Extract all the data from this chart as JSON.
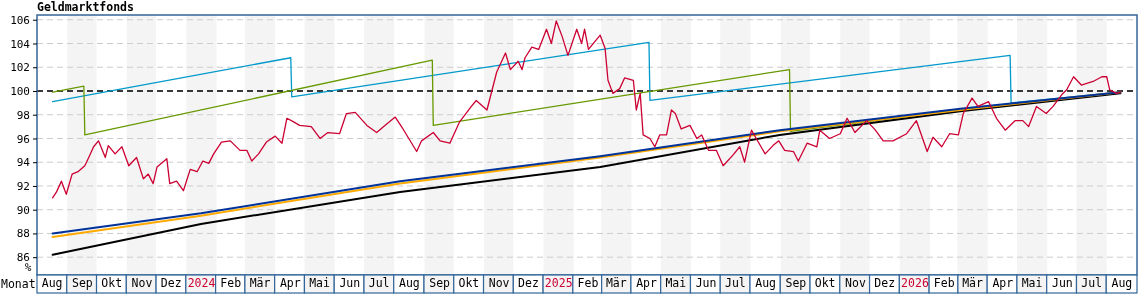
{
  "chart_data": {
    "type": "line",
    "title": "Geldmarktfonds",
    "xlabel": "Monat",
    "ylabel": "%",
    "xlim": [
      "2023-08-01",
      "2026-09-01"
    ],
    "ylim": [
      84.5,
      106.4
    ],
    "yticks": [
      86,
      88,
      90,
      92,
      94,
      96,
      98,
      100,
      102,
      104,
      106
    ],
    "xticks": [
      {
        "value": "2023-08-16",
        "label": "Aug"
      },
      {
        "value": "2023-09-16",
        "label": "Sep"
      },
      {
        "value": "2023-10-16",
        "label": "Okt"
      },
      {
        "value": "2023-11-16",
        "label": "Nov"
      },
      {
        "value": "2023-12-16",
        "label": "Dez"
      },
      {
        "value": "2024-01-16",
        "label": "2024"
      },
      {
        "value": "2024-02-15",
        "label": "Feb"
      },
      {
        "value": "2024-03-16",
        "label": "Mär"
      },
      {
        "value": "2024-04-16",
        "label": "Apr"
      },
      {
        "value": "2024-05-16",
        "label": "Mai"
      },
      {
        "value": "2024-06-16",
        "label": "Jun"
      },
      {
        "value": "2024-07-16",
        "label": "Jul"
      },
      {
        "value": "2024-08-16",
        "label": "Aug"
      },
      {
        "value": "2024-09-16",
        "label": "Sep"
      },
      {
        "value": "2024-10-16",
        "label": "Okt"
      },
      {
        "value": "2024-11-16",
        "label": "Nov"
      },
      {
        "value": "2024-12-16",
        "label": "Dez"
      },
      {
        "value": "2025-01-16",
        "label": "2025"
      },
      {
        "value": "2025-02-15",
        "label": "Feb"
      },
      {
        "value": "2025-03-16",
        "label": "Mär"
      },
      {
        "value": "2025-04-16",
        "label": "Apr"
      },
      {
        "value": "2025-05-16",
        "label": "Mai"
      },
      {
        "value": "2025-06-16",
        "label": "Jun"
      },
      {
        "value": "2025-07-16",
        "label": "Jul"
      },
      {
        "value": "2025-08-16",
        "label": "Aug"
      },
      {
        "value": "2025-09-16",
        "label": "Sep"
      },
      {
        "value": "2025-10-16",
        "label": "Okt"
      },
      {
        "value": "2025-11-16",
        "label": "Nov"
      },
      {
        "value": "2025-12-16",
        "label": "Dez"
      },
      {
        "value": "2026-01-16",
        "label": "2026"
      },
      {
        "value": "2026-02-15",
        "label": "Feb"
      },
      {
        "value": "2026-03-16",
        "label": "Mär"
      },
      {
        "value": "2026-04-16",
        "label": "Apr"
      },
      {
        "value": "2026-05-16",
        "label": "Mai"
      },
      {
        "value": "2026-06-16",
        "label": "Jun"
      },
      {
        "value": "2026-07-16",
        "label": "Jul"
      },
      {
        "value": "2026-08-16",
        "label": "Aug"
      }
    ],
    "grid": "y",
    "ref_lines": [
      {
        "axis": "y",
        "value": 100,
        "label": null,
        "color": "#000000",
        "line_style": "dashed"
      }
    ],
    "bands": [
      {
        "axis": "x",
        "from": "2023-09-01",
        "to": "2023-10-01",
        "label": null,
        "color": "#f4f4f4"
      },
      {
        "axis": "x",
        "from": "2023-11-01",
        "to": "2023-12-01",
        "label": null,
        "color": "#f4f4f4"
      },
      {
        "axis": "x",
        "from": "2024-01-01",
        "to": "2024-02-01",
        "label": null,
        "color": "#f4f4f4"
      },
      {
        "axis": "x",
        "from": "2024-03-01",
        "to": "2024-04-01",
        "label": null,
        "color": "#f4f4f4"
      },
      {
        "axis": "x",
        "from": "2024-05-01",
        "to": "2024-06-01",
        "label": null,
        "color": "#f4f4f4"
      },
      {
        "axis": "x",
        "from": "2024-07-01",
        "to": "2024-08-01",
        "label": null,
        "color": "#f4f4f4"
      },
      {
        "axis": "x",
        "from": "2024-09-01",
        "to": "2024-10-01",
        "label": null,
        "color": "#f4f4f4"
      },
      {
        "axis": "x",
        "from": "2024-11-01",
        "to": "2024-12-01",
        "label": null,
        "color": "#f4f4f4"
      },
      {
        "axis": "x",
        "from": "2025-01-01",
        "to": "2025-02-01",
        "label": null,
        "color": "#f4f4f4"
      },
      {
        "axis": "x",
        "from": "2025-03-01",
        "to": "2025-04-01",
        "label": null,
        "color": "#f4f4f4"
      },
      {
        "axis": "x",
        "from": "2025-05-01",
        "to": "2025-06-01",
        "label": null,
        "color": "#f4f4f4"
      },
      {
        "axis": "x",
        "from": "2025-07-01",
        "to": "2025-08-01",
        "label": null,
        "color": "#f4f4f4"
      },
      {
        "axis": "x",
        "from": "2025-09-01",
        "to": "2025-10-01",
        "label": null,
        "color": "#f4f4f4"
      },
      {
        "axis": "x",
        "from": "2025-11-01",
        "to": "2025-12-01",
        "label": null,
        "color": "#f4f4f4"
      },
      {
        "axis": "x",
        "from": "2026-01-01",
        "to": "2026-02-01",
        "label": null,
        "color": "#f4f4f4"
      },
      {
        "axis": "x",
        "from": "2026-03-01",
        "to": "2026-04-01",
        "label": null,
        "color": "#f4f4f4"
      },
      {
        "axis": "x",
        "from": "2026-05-01",
        "to": "2026-06-01",
        "label": null,
        "color": "#f4f4f4"
      },
      {
        "axis": "x",
        "from": "2026-07-01",
        "to": "2026-08-01",
        "label": null,
        "color": "#f4f4f4"
      }
    ],
    "series": [
      {
        "color": "#0099cc",
        "x": [
          "2023-08-17",
          "2024-04-17",
          "2024-04-18",
          "2025-04-19",
          "2025-04-20",
          "2026-04-24",
          "2026-04-25",
          "2026-08-15"
        ],
        "values": [
          99.1,
          102.8,
          99.5,
          104.1,
          99.2,
          103.0,
          99.0,
          99.9
        ]
      },
      {
        "color": "#669900",
        "x": [
          "2023-08-17",
          "2023-09-18",
          "2023-09-19",
          "2024-09-09",
          "2024-09-10",
          "2025-09-10",
          "2025-09-11",
          "2026-03-04",
          "2026-08-15"
        ],
        "values": [
          99.9,
          100.4,
          96.3,
          102.6,
          97.1,
          101.8,
          96.6,
          98.4,
          99.9
        ]
      },
      {
        "color": "#000000",
        "x": [
          "2023-08-17",
          "2024-01-16",
          "2024-08-07",
          "2025-02-28",
          "2025-08-31",
          "2026-03-04",
          "2026-08-15"
        ],
        "values": [
          86.2,
          88.8,
          91.5,
          93.6,
          96.3,
          98.3,
          99.8
        ]
      },
      {
        "color": "#ffaa00",
        "x": [
          "2023-08-17",
          "2024-01-16",
          "2024-08-07",
          "2025-02-28",
          "2025-08-31",
          "2026-03-04",
          "2026-08-15"
        ],
        "values": [
          87.7,
          89.5,
          92.2,
          94.4,
          96.6,
          98.4,
          99.9
        ]
      },
      {
        "color": "#003399",
        "x": [
          "2023-08-17",
          "2024-01-16",
          "2024-08-07",
          "2025-02-28",
          "2025-08-31",
          "2026-03-04",
          "2026-08-15"
        ],
        "values": [
          88.0,
          89.7,
          92.4,
          94.5,
          96.7,
          98.5,
          99.9
        ]
      },
      {
        "color": "#cc0033",
        "x": [
          "2023-08-17",
          "2023-08-21",
          "2023-08-26",
          "2023-08-31",
          "2023-09-06",
          "2023-09-12",
          "2023-09-19",
          "2023-09-23",
          "2023-09-28",
          "2023-10-03",
          "2023-10-10",
          "2023-10-13",
          "2023-10-20",
          "2023-10-27",
          "2023-11-03",
          "2023-11-11",
          "2023-11-18",
          "2023-11-23",
          "2023-11-28",
          "2023-12-02",
          "2023-12-12",
          "2023-12-15",
          "2023-12-22",
          "2023-12-29",
          "2024-01-05",
          "2024-01-12",
          "2024-01-18",
          "2024-01-24",
          "2024-01-29",
          "2024-02-06",
          "2024-02-15",
          "2024-02-25",
          "2024-03-03",
          "2024-03-08",
          "2024-03-15",
          "2024-03-23",
          "2024-04-01",
          "2024-04-08",
          "2024-04-13",
          "2024-04-20",
          "2024-04-26",
          "2024-05-08",
          "2024-05-17",
          "2024-05-25",
          "2024-06-06",
          "2024-06-13",
          "2024-06-22",
          "2024-07-04",
          "2024-07-14",
          "2024-07-24",
          "2024-08-02",
          "2024-08-10",
          "2024-08-24",
          "2024-08-29",
          "2024-09-10",
          "2024-09-17",
          "2024-09-27",
          "2024-10-07",
          "2024-10-19",
          "2024-10-24",
          "2024-11-04",
          "2024-11-14",
          "2024-11-23",
          "2024-11-28",
          "2024-12-06",
          "2024-12-10",
          "2024-12-13",
          "2024-12-20",
          "2024-12-27",
          "2025-01-04",
          "2025-01-09",
          "2025-01-14",
          "2025-01-20",
          "2025-01-26",
          "2025-02-04",
          "2025-02-09",
          "2025-02-12",
          "2025-02-16",
          "2025-02-28",
          "2025-03-05",
          "2025-03-08",
          "2025-03-13",
          "2025-03-20",
          "2025-03-25",
          "2025-04-03",
          "2025-04-06",
          "2025-04-10",
          "2025-04-13",
          "2025-04-20",
          "2025-04-25",
          "2025-04-30",
          "2025-05-07",
          "2025-05-12",
          "2025-05-16",
          "2025-05-22",
          "2025-05-31",
          "2025-06-07",
          "2025-06-12",
          "2025-06-19",
          "2025-06-27",
          "2025-07-04",
          "2025-07-14",
          "2025-07-21",
          "2025-07-26",
          "2025-08-02",
          "2025-08-09",
          "2025-08-16",
          "2025-08-24",
          "2025-08-30",
          "2025-09-05",
          "2025-09-14",
          "2025-09-19",
          "2025-09-28",
          "2025-10-08",
          "2025-10-11",
          "2025-10-21",
          "2025-11-01",
          "2025-11-08",
          "2025-11-16",
          "2025-11-28",
          "2025-12-07",
          "2025-12-15",
          "2025-12-25",
          "2026-01-08",
          "2026-01-18",
          "2026-01-29",
          "2026-02-04",
          "2026-02-13",
          "2026-02-21",
          "2026-03-02",
          "2026-03-07",
          "2026-03-16",
          "2026-03-22",
          "2026-04-02",
          "2026-04-10",
          "2026-04-19",
          "2026-04-29",
          "2026-05-07",
          "2026-05-13",
          "2026-05-21",
          "2026-05-31",
          "2026-06-07",
          "2026-06-16",
          "2026-06-21",
          "2026-06-28",
          "2026-07-06",
          "2026-07-18",
          "2026-07-27",
          "2026-08-01",
          "2026-08-04",
          "2026-08-11",
          "2026-08-15"
        ],
        "values": [
          91.0,
          91.5,
          92.4,
          91.3,
          93.0,
          93.2,
          93.7,
          94.4,
          95.3,
          95.8,
          94.4,
          95.4,
          94.7,
          95.3,
          93.7,
          94.4,
          92.6,
          93.0,
          92.2,
          93.6,
          94.3,
          92.2,
          92.4,
          91.6,
          93.4,
          93.2,
          94.1,
          93.9,
          94.7,
          95.7,
          95.8,
          95.0,
          95.0,
          94.1,
          94.7,
          95.7,
          96.2,
          95.6,
          97.7,
          97.4,
          97.1,
          97.0,
          96.0,
          96.5,
          96.4,
          98.1,
          98.2,
          97.1,
          96.5,
          97.2,
          97.8,
          96.8,
          94.9,
          95.8,
          96.5,
          95.8,
          95.6,
          97.4,
          98.7,
          99.2,
          98.4,
          101.6,
          103.2,
          101.8,
          102.5,
          101.8,
          102.8,
          103.7,
          103.5,
          105.2,
          104.0,
          105.9,
          104.6,
          103.0,
          105.2,
          104.0,
          105.2,
          103.5,
          104.7,
          103.6,
          100.9,
          99.8,
          100.2,
          101.1,
          100.9,
          98.4,
          99.8,
          96.3,
          96.0,
          95.3,
          96.3,
          96.3,
          98.4,
          98.1,
          96.8,
          97.1,
          96.0,
          96.3,
          95.0,
          95.0,
          93.7,
          94.6,
          95.3,
          94.0,
          96.7,
          95.7,
          94.7,
          95.4,
          95.8,
          95.0,
          94.9,
          94.1,
          95.6,
          95.3,
          96.7,
          96.0,
          96.4,
          97.7,
          96.5,
          97.5,
          96.7,
          95.8,
          95.8,
          96.4,
          97.5,
          94.9,
          96.1,
          95.3,
          96.4,
          96.3,
          98.1,
          99.4,
          98.7,
          99.1,
          97.7,
          96.7,
          97.5,
          97.5,
          97.0,
          98.7,
          98.1,
          98.7,
          99.7,
          100.1,
          101.2,
          100.5,
          100.8,
          101.2,
          101.2,
          100.1,
          99.8,
          99.9
        ]
      }
    ]
  }
}
